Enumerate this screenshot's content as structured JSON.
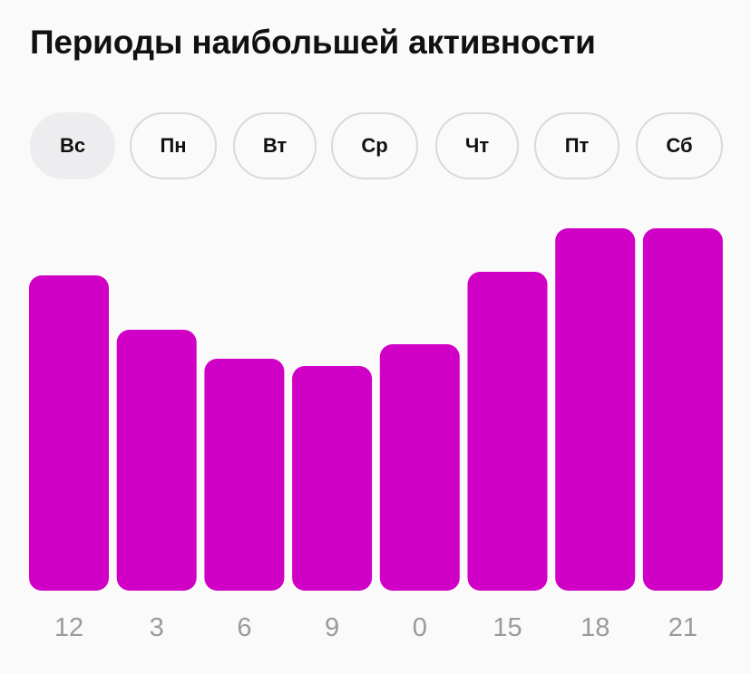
{
  "header": {
    "title": "Периоды наибольшей активности"
  },
  "day_tabs": {
    "selected_index": 0,
    "items": [
      {
        "label": "Вс"
      },
      {
        "label": "Пн"
      },
      {
        "label": "Вт"
      },
      {
        "label": "Ср"
      },
      {
        "label": "Чт"
      },
      {
        "label": "Пт"
      },
      {
        "label": "Сб"
      }
    ]
  },
  "colors": {
    "bar": "#d100c7",
    "tick_label": "#9a9a9a",
    "selected_tab": "#ededef",
    "tab_border": "#d9d9d9"
  },
  "chart_data": {
    "type": "bar",
    "title": "Периоды наибольшей активности",
    "categories": [
      "12",
      "3",
      "6",
      "9",
      "0",
      "15",
      "18",
      "21"
    ],
    "values": [
      87,
      72,
      64,
      62,
      68,
      88,
      100,
      100
    ],
    "ylim": [
      0,
      100
    ],
    "grid": false,
    "legend": "none",
    "xlabel": "",
    "ylabel": ""
  }
}
